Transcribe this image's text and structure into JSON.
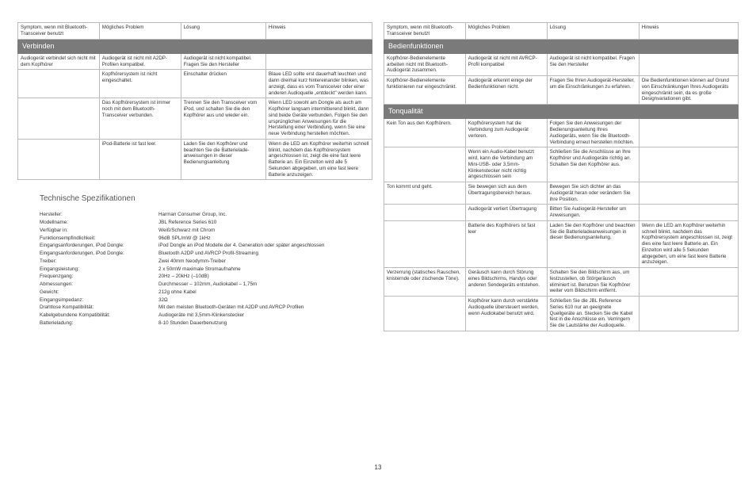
{
  "columns": [
    "Symptom, wenn mit Bluetooth-Transceiver benutzt",
    "Mögliches Problem",
    "Lösung",
    "Hinweis"
  ],
  "left": {
    "sections": [
      {
        "title": "Verbinden",
        "rows": [
          [
            "Audiogerät verbindet sich nicht mit dem Kopfhörer",
            "Audiogerät ist nicht mit A2DP-Profilen kompatibel.",
            "Audiogerät ist nicht kompatibel. Fragen Sie den Hersteller",
            ""
          ],
          [
            "",
            "Kopfhörersystem ist nicht eingeschaltet.",
            "Einschalter drücken",
            "Blaue LED sollte erst dauerhaft leuchten und dann dreimal kurz hintereinander blinken, was anzeigt, dass es vom Transceiver oder einer anderen Audioquelle „entdeckt\" werden kann."
          ],
          [
            "",
            "Das Kopfhörersystem ist immer noch mit dem Bluetooth-Transceiver verbunden.",
            "Trennen Sie den Transceiver vom iPod, und schalten Sie die den Kopfhörer aus und wieder ein.",
            "Wenn LED sowohl am Dongle als auch am Kopfhörer langsam intermittierend blinkt, dann sind beide Geräte verbunden. Folgen Sie den ursprünglichen Anweisungen für die Herstellung einer Verbindung, wenn Sie eine neue Verbindung herstellen möchten."
          ],
          [
            "",
            "iPod-Batterie ist fast leer.",
            "Laden Sie den Kopfhörer und beachten Sie die Batterielade-anweisungen in dieser Bedienungsanleitung",
            "Wenn die LED am Kopfhörer weiterhin schnell blinkt, nachdem das Kopfhörersystem angeschlossen ist, zeigt die eine fast leere Batterie an. Ein Einzelton wird alle 5 Sekunden abgegeben, um eine fast leere Batterie anzuzeigen."
          ]
        ]
      }
    ]
  },
  "right": {
    "sections": [
      {
        "title": "Bedienfunktionen",
        "rows": [
          [
            "Kopfhörer-Bedienelemente arbeiten nicht mit Bluetooth-Audiogerät zusammen.",
            "Audiogerät ist nicht mit AVRCP-Profil kompatibel",
            "Audiogerät ist nicht kompatibel. Fragen Sie den Hersteller",
            ""
          ],
          [
            "Kopfhörer-Bedienelemente funktionieren nur eingeschränkt.",
            "Audiogerät erkennt einige der Bedienfunktionen nicht.",
            "Fragen Sie Ihren Audiogerät-Hersteller, um die Einschränkungen zu erfahren.",
            "Die Bedienfunktionen können auf Grund von Einschränkungen Ihres Audiogeräts eingeschränkt sein, da es große Designvariationen gibt."
          ]
        ]
      },
      {
        "title": "Tonqualität",
        "rows": [
          [
            "Kein Ton aus den Kopfhörern.",
            "Kopfhörersystem hat die Verbindung zum Audiogerät verloren.",
            "Folgen Sie den Anweisungen der Bedienungsanleitung Ihres Audiogeräts, wenn Sie die Bluetooth-Verbindung erneut herstellen möchten.",
            ""
          ],
          [
            "",
            "Wenn ein Audio-Kabel benutzt wird, kann die Verbindung am Mini-USB- oder 3,5mm-Klinkenstecker nicht richtig angeschlossen sein",
            "Schließen Sie die Anschlüsse an Ihre Kopfhörer und Audiogeräte richtig an. Schalten Sie den Kopfhörer aus.",
            ""
          ],
          [
            "Ton kommt und geht.",
            "Sie bewegen sich aus dem Übertragungsbereich heraus.",
            "Bewegen Sie sich dichter an das Audiogerät heran oder verändern Sie ihre Position.",
            ""
          ],
          [
            "",
            "Audiogerät verliert Übertragung",
            "Bitten Sie Audiogerät-Hersteller um Anweisungen.",
            ""
          ],
          [
            "",
            "Batterie des Kopfhörers ist fast leer",
            "Laden Sie den Kopfhörer und beachten Sie die Batterieladeanweisungen in dieser Bedienungsanleitung.",
            "Wenn die LED am Kopfhörer weiterhin schnell blinkt, nachdem das Kopfhörersystem angeschlossen ist, zeigt dies eine fast leere Batterie an. Ein Einzelton wird alle 5 Sekunden abgegeben, um eine fast leere Batterie anzuzeigen."
          ],
          [
            "Verzerrung (statisches Rauschen, knisternde oder zischende Töne).",
            "Geräusch kann durch Störung eines Bildschirms, Handys oder anderen Sendegeräts entstehen.",
            "Schalten Sie den Bildschirm aus, um festzustellen, ob Störgeräusch eliminiert ist. Benutzen Sie Kopfhörer weiter vom Bildschirm entfernt.",
            ""
          ],
          [
            "",
            "Kopfhörer kann durch verstärkte Audioquelle übersteuert werden, wenn Audiokabel benutzt wird.",
            "Schließen Sie die JBL Reference Series 610 nur an geeignete Quellgeräte an. Stecken Sie die Kabel fest in die Anschlüsse ein. Verringern Sie die Lautstärke der Audioquelle.",
            ""
          ]
        ]
      }
    ]
  },
  "specs_title": "Technische Spezifikationen",
  "specs": [
    [
      "Hersteller:",
      "Harman Consumer Group, Inc."
    ],
    [
      "Modellname:",
      "JBL Reference Series 610"
    ],
    [
      "Verfügbar in:",
      "Weiß/Schwarz mit Chrom"
    ],
    [
      "Funktionsempfindlichkeit:",
      "96dB SPL/mW @ 1kHz"
    ],
    [
      "Eingangsanforderungen, iPod Dongle:",
      "iPod Dongle an iPod Modelle der 4. Generation oder später angeschlossen"
    ],
    [
      "Eingangsanforderungen, iPod Dongle:",
      "Bluetooth A2DP und AVRCP Profil-Streaming"
    ],
    [
      "Treiber:",
      "Zwei 40mm Neodymm-Treiber"
    ],
    [
      "Eingangsleistung:",
      "2 x 50mW maximale Stromaufnahme"
    ],
    [
      "Frequenzgang:",
      "20Hz – 20kHz (–10dB)"
    ],
    [
      "Abmessungen:",
      "Durchmesser – 102mm, Audiokabel – 1,75m"
    ],
    [
      "Gewicht:",
      "212g ohne Kabel"
    ],
    [
      "Eingangsimpedanz:",
      "32Ω"
    ],
    [
      "Drahtlose Kompatibilität:",
      "Mit den meisten Bluetooth-Geräten mit A2DP und AVRCP Profilen"
    ],
    [
      "Kabelgebundene Kompatibilität:",
      "Audiogeräte mit 3,5mm-Klinkenstecker"
    ],
    [
      "Batterieladung:",
      "8-10 Stunden Dauerbenutzung"
    ]
  ],
  "page_number": "13"
}
